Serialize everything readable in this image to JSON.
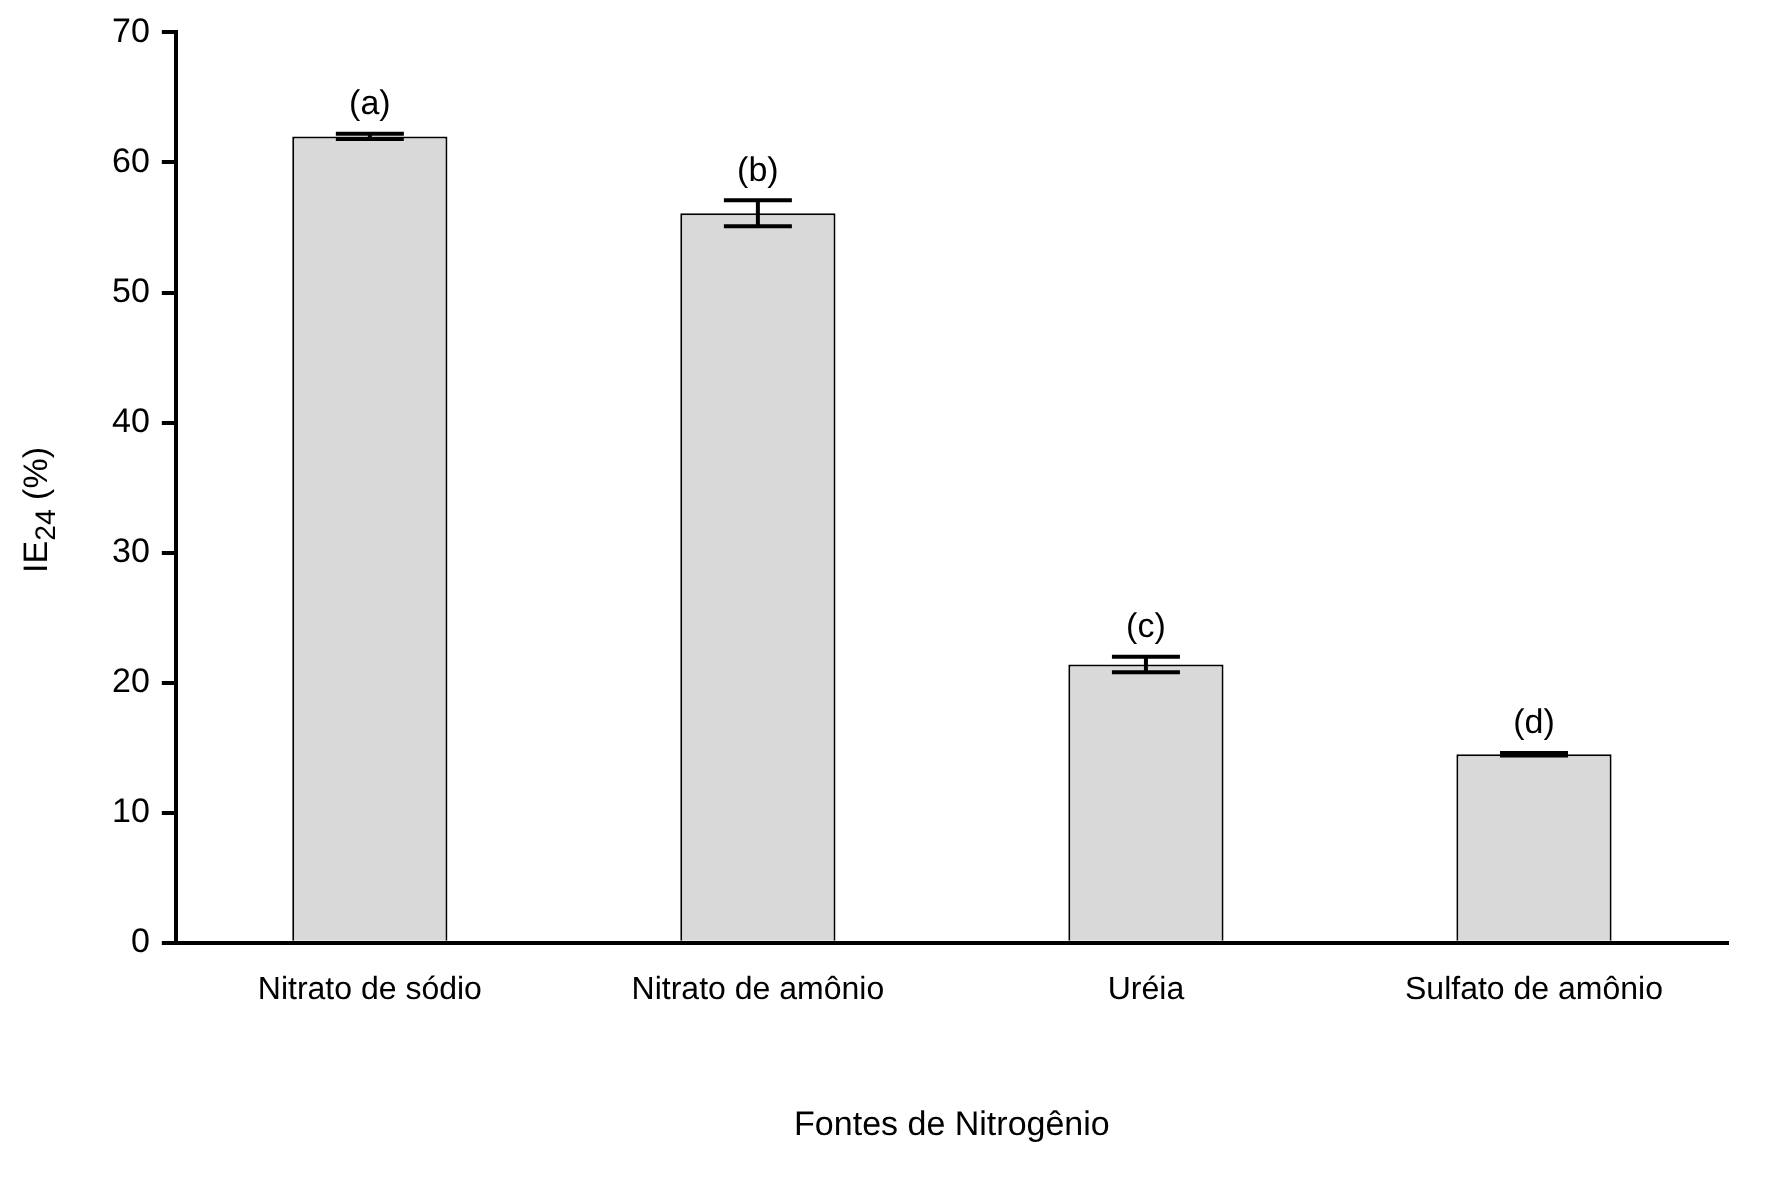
{
  "chart_data": {
    "type": "bar",
    "xlabel": "Fontes de Nitrogênio",
    "ylabel": "IE$_{24}$ (%)",
    "categories": [
      "Nitrato de sódio",
      "Nitrato de amônio",
      "Uréia",
      "Sulfato de amônio"
    ],
    "values": [
      62.0,
      56.1,
      21.4,
      14.5
    ],
    "errors": [
      0.2,
      1.0,
      0.6,
      0.1
    ],
    "color": "#d9d9d9",
    "ylim": [
      0,
      70
    ],
    "yticks": [
      0,
      10,
      20,
      30,
      40,
      50,
      60,
      70
    ],
    "grid": false,
    "annotations": [
      {
        "text": "(a)",
        "x": "Nitrato de sódio",
        "y": 62.2
      },
      {
        "text": "(b)",
        "x": "Nitrato de amônio",
        "y": 57.1
      },
      {
        "text": "(c)",
        "x": "Uréia",
        "y": 22.0
      },
      {
        "text": "(d)",
        "x": "Sulfato de amônio",
        "y": 14.6
      }
    ]
  }
}
